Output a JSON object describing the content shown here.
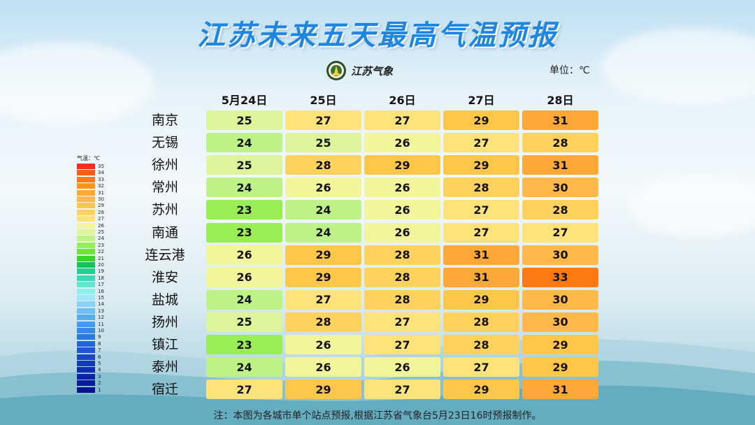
{
  "title": "江苏未来五天最高气温预报",
  "logo": {
    "name": "江苏气象",
    "icon": "meteorology-seal-icon"
  },
  "unit_label": "单位：℃",
  "footnote": "注：本图为各城市单个站点预报,根据江苏省气象台5月23日16时预报制作。",
  "legend": {
    "title": "气温：℃",
    "levels": [
      {
        "label": "35",
        "color": "#ff2b1f"
      },
      {
        "label": "34",
        "color": "#ff5a16"
      },
      {
        "label": "33",
        "color": "#ff7a10"
      },
      {
        "label": "32",
        "color": "#ff9520"
      },
      {
        "label": "31",
        "color": "#ffa838"
      },
      {
        "label": "30",
        "color": "#ffb84a"
      },
      {
        "label": "29",
        "color": "#ffc64a"
      },
      {
        "label": "28",
        "color": "#ffd25e"
      },
      {
        "label": "27",
        "color": "#ffe27a"
      },
      {
        "label": "26",
        "color": "#f3f59a"
      },
      {
        "label": "25",
        "color": "#dcf59a"
      },
      {
        "label": "24",
        "color": "#bdf287"
      },
      {
        "label": "23",
        "color": "#99ee55"
      },
      {
        "label": "22",
        "color": "#6fe436"
      },
      {
        "label": "21",
        "color": "#37d62a"
      },
      {
        "label": "20",
        "color": "#17c05a"
      },
      {
        "label": "19",
        "color": "#1fd08e"
      },
      {
        "label": "18",
        "color": "#39dcb4"
      },
      {
        "label": "17",
        "color": "#62e6d2"
      },
      {
        "label": "16",
        "color": "#8ef0e8"
      },
      {
        "label": "15",
        "color": "#9ee6f8"
      },
      {
        "label": "14",
        "color": "#86d2fa"
      },
      {
        "label": "13",
        "color": "#6ec0f6"
      },
      {
        "label": "12",
        "color": "#56aef2"
      },
      {
        "label": "11",
        "color": "#409cee"
      },
      {
        "label": "10",
        "color": "#338ae8"
      },
      {
        "label": "9",
        "color": "#2b78e0"
      },
      {
        "label": "8",
        "color": "#2466d8"
      },
      {
        "label": "7",
        "color": "#1e56cf"
      },
      {
        "label": "6",
        "color": "#1848c6"
      },
      {
        "label": "5",
        "color": "#143abc"
      },
      {
        "label": "4",
        "color": "#102eb2"
      },
      {
        "label": "3",
        "color": "#0c24a6"
      },
      {
        "label": "2",
        "color": "#0a1c9a"
      },
      {
        "label": "1",
        "color": "#08148e"
      }
    ]
  },
  "chart_data": {
    "type": "heatmap",
    "title": "江苏未来五天最高气温预报",
    "unit": "℃",
    "columns": [
      "5月24日",
      "25日",
      "26日",
      "27日",
      "28日"
    ],
    "rows": [
      {
        "city": "南京",
        "values": [
          25,
          27,
          27,
          29,
          31
        ]
      },
      {
        "city": "无锡",
        "values": [
          24,
          25,
          26,
          27,
          28
        ]
      },
      {
        "city": "徐州",
        "values": [
          25,
          28,
          29,
          29,
          31
        ]
      },
      {
        "city": "常州",
        "values": [
          24,
          26,
          26,
          28,
          30
        ]
      },
      {
        "city": "苏州",
        "values": [
          23,
          24,
          26,
          27,
          28
        ]
      },
      {
        "city": "南通",
        "values": [
          23,
          24,
          26,
          27,
          27
        ]
      },
      {
        "city": "连云港",
        "values": [
          26,
          29,
          28,
          31,
          30
        ]
      },
      {
        "city": "淮安",
        "values": [
          26,
          29,
          28,
          31,
          33
        ]
      },
      {
        "city": "盐城",
        "values": [
          24,
          27,
          28,
          29,
          30
        ]
      },
      {
        "city": "扬州",
        "values": [
          25,
          28,
          27,
          28,
          30
        ]
      },
      {
        "city": "镇江",
        "values": [
          23,
          26,
          27,
          28,
          29
        ]
      },
      {
        "city": "泰州",
        "values": [
          24,
          26,
          26,
          27,
          29
        ]
      },
      {
        "city": "宿迁",
        "values": [
          27,
          29,
          27,
          29,
          31
        ]
      }
    ]
  }
}
